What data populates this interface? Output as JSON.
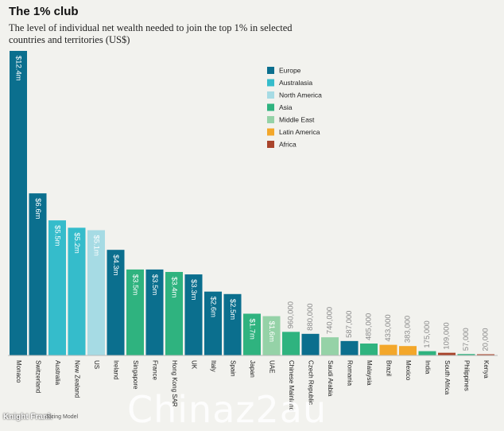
{
  "header": {
    "title": "The 1% club",
    "subtitle": "The level of individual net wealth needed to join the top 1% in selected countries and territories (US$)"
  },
  "footer": {
    "logo": "Knight Frank",
    "source": "Sizing Model"
  },
  "watermark": "Chinaz2au",
  "colors": {
    "Europe": "#0b6f8e",
    "Australasia": "#35bccb",
    "North America": "#a6dbe4",
    "Asia": "#2fb37f",
    "Middle East": "#95d2a7",
    "Latin America": "#f3a72a",
    "Africa": "#a9442b"
  },
  "chart_data": {
    "type": "bar",
    "legend_position": "top-right",
    "legend": [
      "Europe",
      "Australasia",
      "North America",
      "Asia",
      "Middle East",
      "Latin America",
      "Africa"
    ],
    "ylim": [
      0,
      12400000
    ],
    "categories": [
      "Monaco",
      "Switzerland",
      "Australia",
      "New Zealand",
      "US",
      "Ireland",
      "Singapore",
      "France",
      "Hong Kong SAR",
      "UK",
      "Italy",
      "Spain",
      "Japan",
      "UAE",
      "Chinese Mainland",
      "Czech Republic",
      "Saudi Arabia",
      "Romania",
      "Malaysia",
      "Brazil",
      "Mexico",
      "India",
      "South Africa",
      "Philippines",
      "Kenya"
    ],
    "values": [
      12400000,
      6600000,
      5500000,
      5200000,
      5100000,
      4300000,
      3500000,
      3500000,
      3400000,
      3300000,
      2600000,
      2500000,
      1700000,
      1600000,
      960000,
      880000,
      740000,
      587000,
      485000,
      433000,
      383000,
      175000,
      109000,
      57000,
      20000
    ],
    "value_labels": [
      "$12.4m",
      "$6.6m",
      "$5.5m",
      "$5.2m",
      "$5.1m",
      "$4.3m",
      "$3.5m",
      "$3.5m",
      "$3.4m",
      "$3.3m",
      "$2.6m",
      "$2.5m",
      "$1.7m",
      "$1.6m",
      "960,000",
      "880,000",
      "740,000",
      "587,000",
      "485,000",
      "433,000",
      "383,000",
      "175,000",
      "109,000",
      "57,000",
      "20,000"
    ],
    "regions": [
      "Europe",
      "Europe",
      "Australasia",
      "Australasia",
      "North America",
      "Europe",
      "Asia",
      "Europe",
      "Asia",
      "Europe",
      "Europe",
      "Europe",
      "Asia",
      "Middle East",
      "Asia",
      "Europe",
      "Middle East",
      "Europe",
      "Asia",
      "Latin America",
      "Latin America",
      "Asia",
      "Africa",
      "Asia",
      "Africa"
    ]
  }
}
